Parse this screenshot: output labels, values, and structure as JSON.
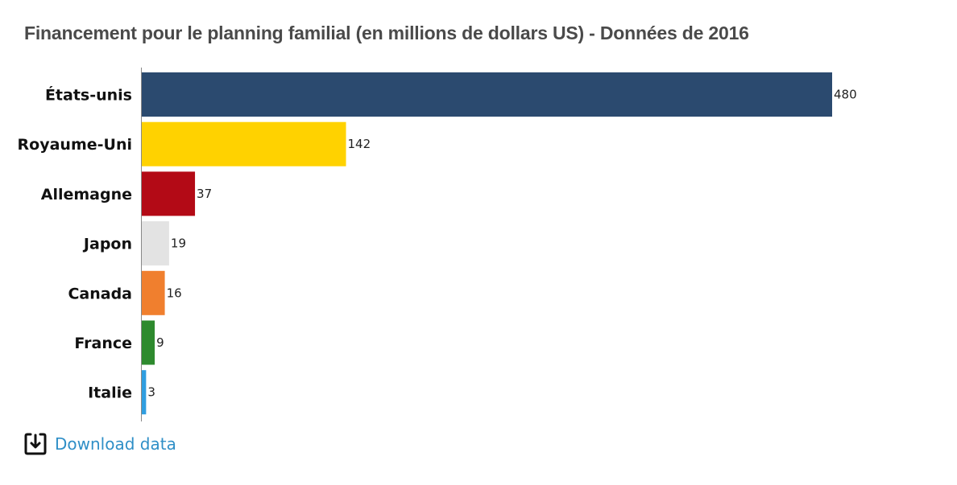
{
  "chart_data": {
    "type": "bar",
    "orientation": "horizontal",
    "title": "Financement pour le planning familial (en millions de dollars US) - Données de 2016",
    "xlabel": "",
    "ylabel": "",
    "categories": [
      "États-unis",
      "Royaume-Uni",
      "Allemagne",
      "Japon",
      "Canada",
      "France",
      "Italie"
    ],
    "values": [
      480,
      142,
      37,
      19,
      16,
      9,
      3
    ],
    "value_labels": [
      "480",
      "142",
      "37",
      "19",
      "16",
      "9",
      "3"
    ],
    "colors": [
      "#2b4a6f",
      "#ffd200",
      "#b30a16",
      "#e3e3e3",
      "#f07f2e",
      "#2e8a2e",
      "#2f9ee0"
    ],
    "xlim": [
      0,
      480
    ],
    "grid": false,
    "legend": "none"
  },
  "download": {
    "label": "Download data",
    "icon": "download-icon"
  },
  "colors": {
    "title": "#4a4a4a",
    "link": "#2f8fc7",
    "axis": "#888888"
  }
}
